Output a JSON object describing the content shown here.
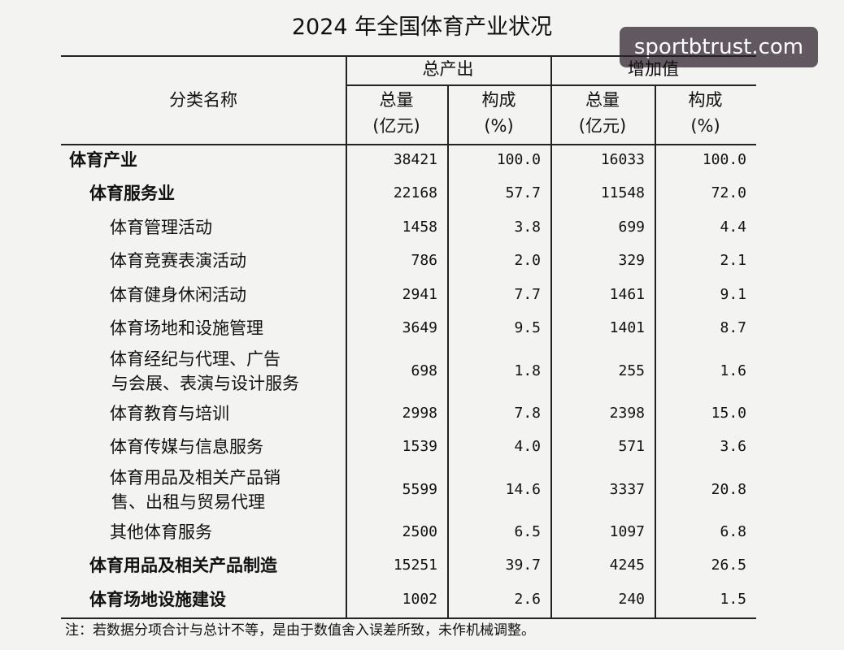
{
  "title": "2024 年全国体育产业状况",
  "watermark": "sportbtrust.com",
  "table": {
    "header": {
      "name": "分类名称",
      "groups": [
        {
          "label": "总产出",
          "columns": [
            [
              "总量",
              "(亿元)"
            ],
            [
              "构成",
              "(%)"
            ]
          ]
        },
        {
          "label": "增加值",
          "columns": [
            [
              "总量",
              "(亿元)"
            ],
            [
              "构成",
              "(%)"
            ]
          ]
        }
      ]
    },
    "rows": [
      {
        "label": [
          "体育产业"
        ],
        "level": 0,
        "cells": [
          "38421",
          "100.0",
          "16033",
          "100.0"
        ]
      },
      {
        "label": [
          "体育服务业"
        ],
        "level": 1,
        "cells": [
          "22168",
          "57.7",
          "11548",
          "72.0"
        ]
      },
      {
        "label": [
          "体育管理活动"
        ],
        "level": 2,
        "cells": [
          "1458",
          "3.8",
          "699",
          "4.4"
        ]
      },
      {
        "label": [
          "体育竞赛表演活动"
        ],
        "level": 2,
        "cells": [
          "786",
          "2.0",
          "329",
          "2.1"
        ]
      },
      {
        "label": [
          "体育健身休闲活动"
        ],
        "level": 2,
        "cells": [
          "2941",
          "7.7",
          "1461",
          "9.1"
        ]
      },
      {
        "label": [
          "体育场地和设施管理"
        ],
        "level": 2,
        "cells": [
          "3649",
          "9.5",
          "1401",
          "8.7"
        ]
      },
      {
        "label": [
          "体育经纪与代理、广告",
          "与会展、表演与设计服务"
        ],
        "level": 2,
        "cells": [
          "698",
          "1.8",
          "255",
          "1.6"
        ]
      },
      {
        "label": [
          "体育教育与培训"
        ],
        "level": 2,
        "cells": [
          "2998",
          "7.8",
          "2398",
          "15.0"
        ]
      },
      {
        "label": [
          "体育传媒与信息服务"
        ],
        "level": 2,
        "cells": [
          "1539",
          "4.0",
          "571",
          "3.6"
        ]
      },
      {
        "label": [
          "体育用品及相关产品销",
          "售、出租与贸易代理"
        ],
        "level": 2,
        "cells": [
          "5599",
          "14.6",
          "3337",
          "20.8"
        ]
      },
      {
        "label": [
          "其他体育服务"
        ],
        "level": 2,
        "cells": [
          "2500",
          "6.5",
          "1097",
          "6.8"
        ]
      },
      {
        "label": [
          "体育用品及相关产品制造"
        ],
        "level": 1,
        "cells": [
          "15251",
          "39.7",
          "4245",
          "26.5"
        ]
      },
      {
        "label": [
          "体育场地设施建设"
        ],
        "level": 1,
        "cells": [
          "1002",
          "2.6",
          "240",
          "1.5"
        ]
      }
    ]
  },
  "note": "注：若数据分项合计与总计不等，是由于数值舍入误差所致，未作机械调整。"
}
